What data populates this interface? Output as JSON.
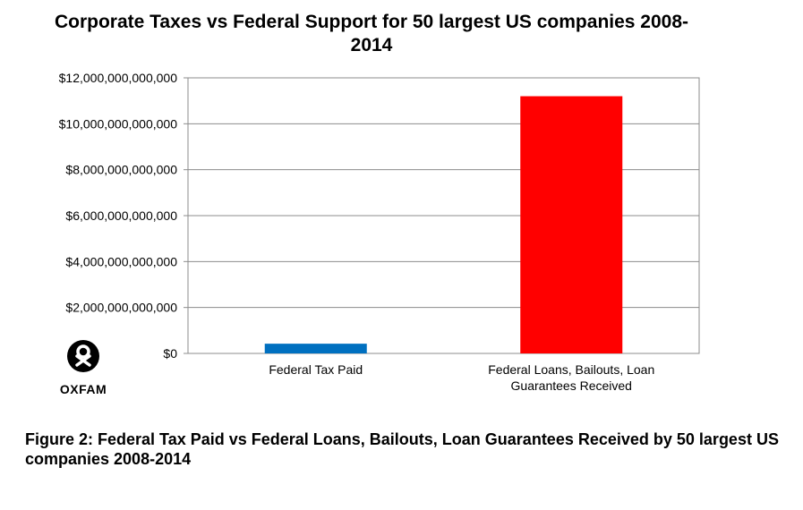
{
  "chart_data": {
    "type": "bar",
    "title": "Corporate Taxes vs Federal Support for 50 largest US companies 2008-2014",
    "categories": [
      "Federal Tax Paid",
      "Federal Loans, Bailouts, Loan Guarantees Received"
    ],
    "category_lines": [
      [
        "Federal Tax Paid"
      ],
      [
        "Federal Loans, Bailouts, Loan",
        "Guarantees Received"
      ]
    ],
    "values": [
      423000000000,
      11200000000000
    ],
    "colors": [
      "#0070C0",
      "#FF0000"
    ],
    "ylim": [
      0,
      12000000000000
    ],
    "yticks": [
      0,
      2000000000000,
      4000000000000,
      6000000000000,
      8000000000000,
      10000000000000,
      12000000000000
    ],
    "ytick_labels": [
      "$0",
      "$2,000,000,000,000",
      "$4,000,000,000,000",
      "$6,000,000,000,000",
      "$8,000,000,000,000",
      "$10,000,000,000,000",
      "$12,000,000,000,000"
    ],
    "grid": true,
    "legend": "none"
  },
  "logo": {
    "text": "OXFAM"
  },
  "caption": "Figure 2: Federal Tax Paid vs Federal Loans, Bailouts, Loan Guarantees Received by 50 largest US companies 2008-2014"
}
